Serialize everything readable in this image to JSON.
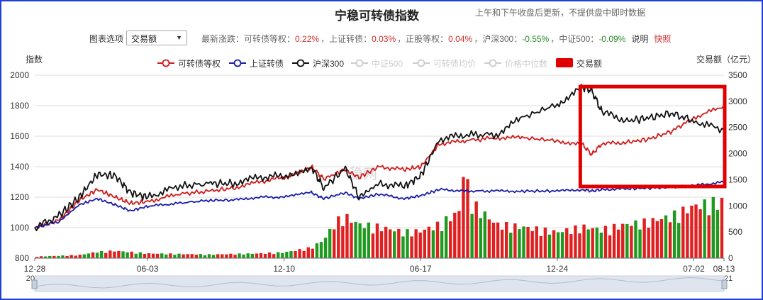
{
  "header": {
    "title": "宁稳可转债指数",
    "subtitle": "上午和下午收盘后更新，不提供盘中即时数据"
  },
  "controls": {
    "label": "图表选项",
    "selected": "交易额",
    "stats_prefix": "最新涨跌：",
    "stats": [
      {
        "name": "可转债等权",
        "value": "0.22%",
        "dir": "up"
      },
      {
        "name": "上证转债",
        "value": "0.03%",
        "dir": "up"
      },
      {
        "name": "正股等权",
        "value": "0.04%",
        "dir": "up"
      },
      {
        "name": "沪深300",
        "value": "-0.55%",
        "dir": "down"
      },
      {
        "name": "中证500",
        "value": "-0.09%",
        "dir": "down"
      }
    ],
    "explain_link": "说明",
    "snapshot_link": "快照"
  },
  "colors": {
    "frame": "#1c3fd8",
    "cb_equal": "#d11a1a",
    "sh_cb": "#1b1ba8",
    "hs300": "#111111",
    "volume_red": "#e02020",
    "volume_green": "#1f9a1f",
    "disabled": "#cccccc",
    "highlight_box": "#e00000"
  },
  "chart_data": {
    "type": "line",
    "ylabel": "指数",
    "y2label": "交易额（亿元）",
    "ylim": [
      800,
      2000
    ],
    "y2lim": [
      0,
      3500
    ],
    "yticks": [
      "800",
      "1000",
      "1200",
      "1400",
      "1600",
      "1800",
      "2000"
    ],
    "y2ticks": [
      "0",
      "500",
      "1000",
      "1500",
      "2000",
      "2500",
      "3000",
      "3500"
    ],
    "xlim": [
      "2018-12-28",
      "2021-08-13"
    ],
    "xticks": [
      {
        "date": "2018-12-28",
        "md": "12-28",
        "yr": "2018"
      },
      {
        "date": "2019-06-03",
        "md": "06-03",
        "yr": "2019"
      },
      {
        "date": "2019-12-10",
        "md": "12-10",
        "yr": "2019"
      },
      {
        "date": "2020-06-17",
        "md": "06-17",
        "yr": "2020"
      },
      {
        "date": "2020-12-24",
        "md": "12-24",
        "yr": "2020"
      },
      {
        "date": "2021-07-02",
        "md": "07-02",
        "yr": "2021"
      },
      {
        "date": "2021-08-13",
        "md": "08-13",
        "yr": "2021"
      }
    ],
    "legend": [
      {
        "name": "可转债等权",
        "active": true,
        "color": "#d11a1a"
      },
      {
        "name": "上证转债",
        "active": true,
        "color": "#1b1ba8"
      },
      {
        "name": "沪深300",
        "active": true,
        "color": "#111111"
      },
      {
        "name": "中证500",
        "active": false,
        "color": "#cccccc"
      },
      {
        "name": "可转债均价",
        "active": false,
        "color": "#cccccc"
      },
      {
        "name": "价格中位数",
        "active": false,
        "color": "#cccccc"
      },
      {
        "name": "交易额",
        "active": true,
        "color": "#e00000",
        "kind": "bar"
      }
    ],
    "legend_position": "top",
    "grid": true,
    "series": [
      {
        "name": "可转债等权",
        "x": [
          "2018-12-28",
          "2019-01-31",
          "2019-02-28",
          "2019-03-25",
          "2019-04-19",
          "2019-05-10",
          "2019-06-03",
          "2019-07-15",
          "2019-08-30",
          "2019-09-30",
          "2019-11-05",
          "2019-12-10",
          "2020-01-17",
          "2020-02-03",
          "2020-03-04",
          "2020-03-23",
          "2020-04-20",
          "2020-05-25",
          "2020-06-17",
          "2020-07-13",
          "2020-08-17",
          "2020-09-30",
          "2020-11-05",
          "2020-12-24",
          "2021-01-29",
          "2021-02-10",
          "2021-02-24",
          "2021-03-31",
          "2021-04-30",
          "2021-05-31",
          "2021-07-02",
          "2021-08-13"
        ],
        "values": [
          1000,
          1050,
          1180,
          1250,
          1200,
          1160,
          1170,
          1220,
          1240,
          1260,
          1300,
          1330,
          1400,
          1320,
          1380,
          1330,
          1400,
          1380,
          1400,
          1550,
          1570,
          1590,
          1590,
          1570,
          1540,
          1480,
          1550,
          1560,
          1580,
          1630,
          1720,
          1800
        ]
      },
      {
        "name": "上证转债",
        "x": [
          "2018-12-28",
          "2019-01-31",
          "2019-02-28",
          "2019-03-25",
          "2019-04-19",
          "2019-05-10",
          "2019-06-03",
          "2019-07-15",
          "2019-08-30",
          "2019-09-30",
          "2019-11-05",
          "2019-12-10",
          "2020-01-17",
          "2020-02-03",
          "2020-03-04",
          "2020-03-23",
          "2020-04-20",
          "2020-05-25",
          "2020-06-17",
          "2020-07-13",
          "2020-08-17",
          "2020-09-30",
          "2020-11-05",
          "2020-12-24",
          "2021-01-29",
          "2021-02-10",
          "2021-02-24",
          "2021-03-31",
          "2021-04-30",
          "2021-05-31",
          "2021-07-02",
          "2021-08-13"
        ],
        "values": [
          1000,
          1040,
          1150,
          1190,
          1150,
          1110,
          1140,
          1160,
          1180,
          1180,
          1200,
          1200,
          1230,
          1190,
          1230,
          1190,
          1220,
          1190,
          1210,
          1250,
          1240,
          1240,
          1240,
          1240,
          1250,
          1240,
          1250,
          1255,
          1260,
          1265,
          1275,
          1300
        ]
      },
      {
        "name": "沪深300",
        "x": [
          "2018-12-28",
          "2019-01-31",
          "2019-02-28",
          "2019-03-25",
          "2019-04-19",
          "2019-05-10",
          "2019-06-03",
          "2019-07-15",
          "2019-08-30",
          "2019-09-30",
          "2019-11-05",
          "2019-12-10",
          "2020-01-17",
          "2020-02-03",
          "2020-03-04",
          "2020-03-23",
          "2020-04-20",
          "2020-05-25",
          "2020-06-17",
          "2020-07-13",
          "2020-08-17",
          "2020-09-30",
          "2020-11-05",
          "2020-12-24",
          "2021-01-29",
          "2021-02-10",
          "2021-02-24",
          "2021-03-31",
          "2021-04-30",
          "2021-05-31",
          "2021-07-02",
          "2021-08-13"
        ],
        "values": [
          1000,
          1080,
          1200,
          1350,
          1340,
          1230,
          1200,
          1270,
          1290,
          1290,
          1330,
          1340,
          1400,
          1260,
          1390,
          1200,
          1290,
          1270,
          1340,
          1580,
          1610,
          1610,
          1720,
          1810,
          1920,
          1900,
          1760,
          1700,
          1720,
          1750,
          1700,
          1640
        ]
      }
    ],
    "volume": {
      "name": "交易额",
      "x": [
        "2018-12-28",
        "2019-02-28",
        "2019-03-25",
        "2019-04-19",
        "2019-06-03",
        "2019-08-30",
        "2019-09-30",
        "2019-11-05",
        "2019-12-10",
        "2020-01-17",
        "2020-02-03",
        "2020-02-20",
        "2020-03-04",
        "2020-03-23",
        "2020-04-20",
        "2020-05-25",
        "2020-06-17",
        "2020-07-13",
        "2020-08-10",
        "2020-08-17",
        "2020-08-24",
        "2020-09-30",
        "2020-11-05",
        "2020-12-24",
        "2021-01-29",
        "2021-02-24",
        "2021-03-31",
        "2021-04-30",
        "2021-05-31",
        "2021-07-02",
        "2021-08-13"
      ],
      "values": [
        30,
        60,
        120,
        140,
        90,
        70,
        80,
        90,
        110,
        200,
        350,
        700,
        800,
        650,
        600,
        500,
        520,
        650,
        900,
        1900,
        1100,
        650,
        600,
        500,
        600,
        550,
        650,
        700,
        800,
        1000,
        1100
      ]
    },
    "annotations": [
      {
        "type": "rectangle",
        "from": "2021-01-29",
        "to": "2021-08-13",
        "ymin": 1270,
        "ymax": 1925,
        "color": "#e00000"
      }
    ],
    "watermark": "稳网"
  }
}
